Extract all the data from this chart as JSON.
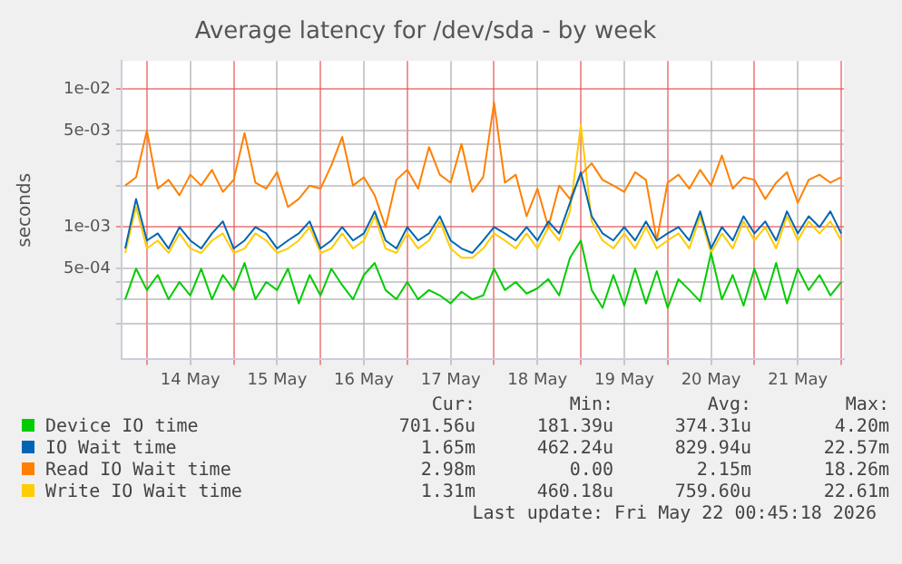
{
  "chart_data": {
    "type": "line",
    "title": "Average latency for /dev/sda - by week",
    "ylabel": "seconds",
    "log": "y",
    "x": [
      "2026-05-13T18:00",
      "2026-05-13T21:00",
      "2026-05-14T00:00",
      "2026-05-14T03:00",
      "2026-05-14T06:00",
      "2026-05-14T09:00",
      "2026-05-14T12:00",
      "2026-05-14T15:00",
      "2026-05-14T18:00",
      "2026-05-14T21:00",
      "2026-05-15T00:00",
      "2026-05-15T03:00",
      "2026-05-15T06:00",
      "2026-05-15T09:00",
      "2026-05-15T12:00",
      "2026-05-15T15:00",
      "2026-05-15T18:00",
      "2026-05-15T21:00",
      "2026-05-16T00:00",
      "2026-05-16T03:00",
      "2026-05-16T06:00",
      "2026-05-16T09:00",
      "2026-05-16T12:00",
      "2026-05-16T15:00",
      "2026-05-16T18:00",
      "2026-05-16T21:00",
      "2026-05-17T00:00",
      "2026-05-17T03:00",
      "2026-05-17T06:00",
      "2026-05-17T09:00",
      "2026-05-17T12:00",
      "2026-05-17T15:00",
      "2026-05-17T18:00",
      "2026-05-17T21:00",
      "2026-05-18T00:00",
      "2026-05-18T03:00",
      "2026-05-18T06:00",
      "2026-05-18T09:00",
      "2026-05-18T12:00",
      "2026-05-18T15:00",
      "2026-05-18T18:00",
      "2026-05-18T21:00",
      "2026-05-19T00:00",
      "2026-05-19T03:00",
      "2026-05-19T06:00",
      "2026-05-19T09:00",
      "2026-05-19T12:00",
      "2026-05-19T15:00",
      "2026-05-19T18:00",
      "2026-05-19T21:00",
      "2026-05-20T00:00",
      "2026-05-20T03:00",
      "2026-05-20T06:00",
      "2026-05-20T09:00",
      "2026-05-20T12:00",
      "2026-05-20T15:00",
      "2026-05-20T18:00",
      "2026-05-20T21:00",
      "2026-05-21T00:00",
      "2026-05-21T03:00",
      "2026-05-21T06:00",
      "2026-05-21T09:00",
      "2026-05-21T12:00",
      "2026-05-21T15:00",
      "2026-05-21T18:00",
      "2026-05-21T21:00",
      "2026-05-22T00:00"
    ],
    "xlim": [
      "2026-05-13T17:00",
      "2026-05-22T00:45"
    ],
    "xticks": [
      {
        "value": "2026-05-14T00:00",
        "label": null
      },
      {
        "value": "2026-05-14T12:00",
        "label": "14 May"
      },
      {
        "value": "2026-05-15T00:00",
        "label": null
      },
      {
        "value": "2026-05-15T12:00",
        "label": "15 May"
      },
      {
        "value": "2026-05-16T00:00",
        "label": null
      },
      {
        "value": "2026-05-16T12:00",
        "label": "16 May"
      },
      {
        "value": "2026-05-17T00:00",
        "label": null
      },
      {
        "value": "2026-05-17T12:00",
        "label": "17 May"
      },
      {
        "value": "2026-05-18T00:00",
        "label": null
      },
      {
        "value": "2026-05-18T12:00",
        "label": "18 May"
      },
      {
        "value": "2026-05-19T00:00",
        "label": null
      },
      {
        "value": "2026-05-19T12:00",
        "label": "19 May"
      },
      {
        "value": "2026-05-20T00:00",
        "label": null
      },
      {
        "value": "2026-05-20T12:00",
        "label": "20 May"
      },
      {
        "value": "2026-05-21T00:00",
        "label": null
      },
      {
        "value": "2026-05-21T12:00",
        "label": "21 May"
      },
      {
        "value": "2026-05-22T00:00",
        "label": null
      }
    ],
    "ylim": [
      0.00011,
      0.016
    ],
    "yticks": [
      {
        "value": 0.0002,
        "label": null
      },
      {
        "value": 0.0003,
        "label": null
      },
      {
        "value": 0.0004,
        "label": null
      },
      {
        "value": 0.0005,
        "label": "5e-04"
      },
      {
        "value": 0.001,
        "label": "1e-03"
      },
      {
        "value": 0.002,
        "label": null
      },
      {
        "value": 0.003,
        "label": null
      },
      {
        "value": 0.004,
        "label": null
      },
      {
        "value": 0.005,
        "label": "5e-03"
      },
      {
        "value": 0.01,
        "label": "1e-02"
      }
    ],
    "grid": true,
    "legend": "bottom",
    "marker": "none",
    "line_style": "solid",
    "series": [
      {
        "name": "Device IO time",
        "color": "#00cc00",
        "values": [
          0.0003,
          0.0005,
          0.00035,
          0.00045,
          0.0003,
          0.0004,
          0.00032,
          0.0005,
          0.0003,
          0.00045,
          0.00035,
          0.00055,
          0.0003,
          0.0004,
          0.00035,
          0.0005,
          0.00028,
          0.00045,
          0.00032,
          0.0005,
          0.00038,
          0.0003,
          0.00045,
          0.00055,
          0.00035,
          0.0003,
          0.0004,
          0.0003,
          0.00035,
          0.00032,
          0.00028,
          0.00034,
          0.0003,
          0.00032,
          0.0005,
          0.00035,
          0.0004,
          0.00033,
          0.00036,
          0.00042,
          0.00032,
          0.0006,
          0.0008,
          0.00035,
          0.00026,
          0.00045,
          0.00027,
          0.0005,
          0.00028,
          0.00048,
          0.00026,
          0.00042,
          0.00035,
          0.00029,
          0.00065,
          0.0003,
          0.00045,
          0.00027,
          0.0005,
          0.0003,
          0.00055,
          0.00028,
          0.0005,
          0.00035,
          0.00045,
          0.00032,
          0.0004
        ]
      },
      {
        "name": "IO Wait time",
        "color": "#0066b3",
        "values": [
          0.0007,
          0.0016,
          0.0008,
          0.0009,
          0.0007,
          0.001,
          0.0008,
          0.0007,
          0.0009,
          0.0011,
          0.0007,
          0.0008,
          0.001,
          0.0009,
          0.0007,
          0.0008,
          0.0009,
          0.0011,
          0.0007,
          0.0008,
          0.001,
          0.0008,
          0.0009,
          0.0013,
          0.0008,
          0.0007,
          0.001,
          0.0008,
          0.0009,
          0.0012,
          0.0008,
          0.0007,
          0.00065,
          0.0008,
          0.001,
          0.0009,
          0.0008,
          0.001,
          0.0008,
          0.0011,
          0.0009,
          0.0015,
          0.0025,
          0.0012,
          0.0009,
          0.0008,
          0.001,
          0.0008,
          0.0011,
          0.0008,
          0.0009,
          0.001,
          0.0008,
          0.0013,
          0.0007,
          0.001,
          0.0008,
          0.0012,
          0.0009,
          0.0011,
          0.0008,
          0.0013,
          0.0009,
          0.0012,
          0.001,
          0.0013,
          0.0009
        ]
      },
      {
        "name": "Read IO Wait time",
        "color": "#ff8000",
        "values": [
          0.002,
          0.0023,
          0.005,
          0.0019,
          0.0022,
          0.0017,
          0.0024,
          0.002,
          0.0026,
          0.0018,
          0.0022,
          0.0048,
          0.0021,
          0.0019,
          0.0025,
          0.0014,
          0.0016,
          0.002,
          0.0019,
          0.0028,
          0.0045,
          0.002,
          0.0023,
          0.0017,
          0.001,
          0.0022,
          0.0026,
          0.0019,
          0.0038,
          0.0024,
          0.0021,
          0.004,
          0.0018,
          0.0023,
          0.008,
          0.0021,
          0.0024,
          0.0012,
          0.0019,
          0.001,
          0.002,
          0.0016,
          0.0024,
          0.0029,
          0.0022,
          0.002,
          0.0018,
          0.0025,
          0.0022,
          0.0008,
          0.0021,
          0.0024,
          0.0019,
          0.0026,
          0.002,
          0.0033,
          0.0019,
          0.0023,
          0.0022,
          0.0016,
          0.0021,
          0.0025,
          0.0015,
          0.0022,
          0.0024,
          0.0021,
          0.0023
        ]
      },
      {
        "name": "Write IO Wait time",
        "color": "#ffcc00",
        "values": [
          0.00065,
          0.0014,
          0.0007,
          0.0008,
          0.00065,
          0.0009,
          0.0007,
          0.00065,
          0.0008,
          0.0009,
          0.00065,
          0.0007,
          0.0009,
          0.0008,
          0.00065,
          0.0007,
          0.0008,
          0.001,
          0.00065,
          0.0007,
          0.0009,
          0.0007,
          0.0008,
          0.0012,
          0.0007,
          0.00065,
          0.0009,
          0.0007,
          0.0008,
          0.0011,
          0.0007,
          0.0006,
          0.0006,
          0.0007,
          0.0009,
          0.0008,
          0.0007,
          0.0009,
          0.0007,
          0.001,
          0.0008,
          0.0013,
          0.0055,
          0.0011,
          0.0008,
          0.0007,
          0.0009,
          0.0007,
          0.001,
          0.0007,
          0.0008,
          0.0009,
          0.0007,
          0.0012,
          0.00065,
          0.0009,
          0.0007,
          0.0011,
          0.0008,
          0.001,
          0.0007,
          0.0012,
          0.0008,
          0.0011,
          0.0009,
          0.0011,
          0.0008
        ]
      }
    ],
    "annotations": [
      "Cur:",
      "Min:",
      "Avg:",
      "Max:",
      "701.56u",
      "181.39u",
      "374.31u",
      "4.20m",
      "1.65m",
      "462.24u",
      "829.94u",
      "22.57m",
      "2.98m",
      "0.00",
      "2.15m",
      "18.26m",
      "1.31m",
      "460.18u",
      "759.60u",
      "22.61m",
      "Last update: Fri May 22 00:45:18 2026"
    ]
  }
}
